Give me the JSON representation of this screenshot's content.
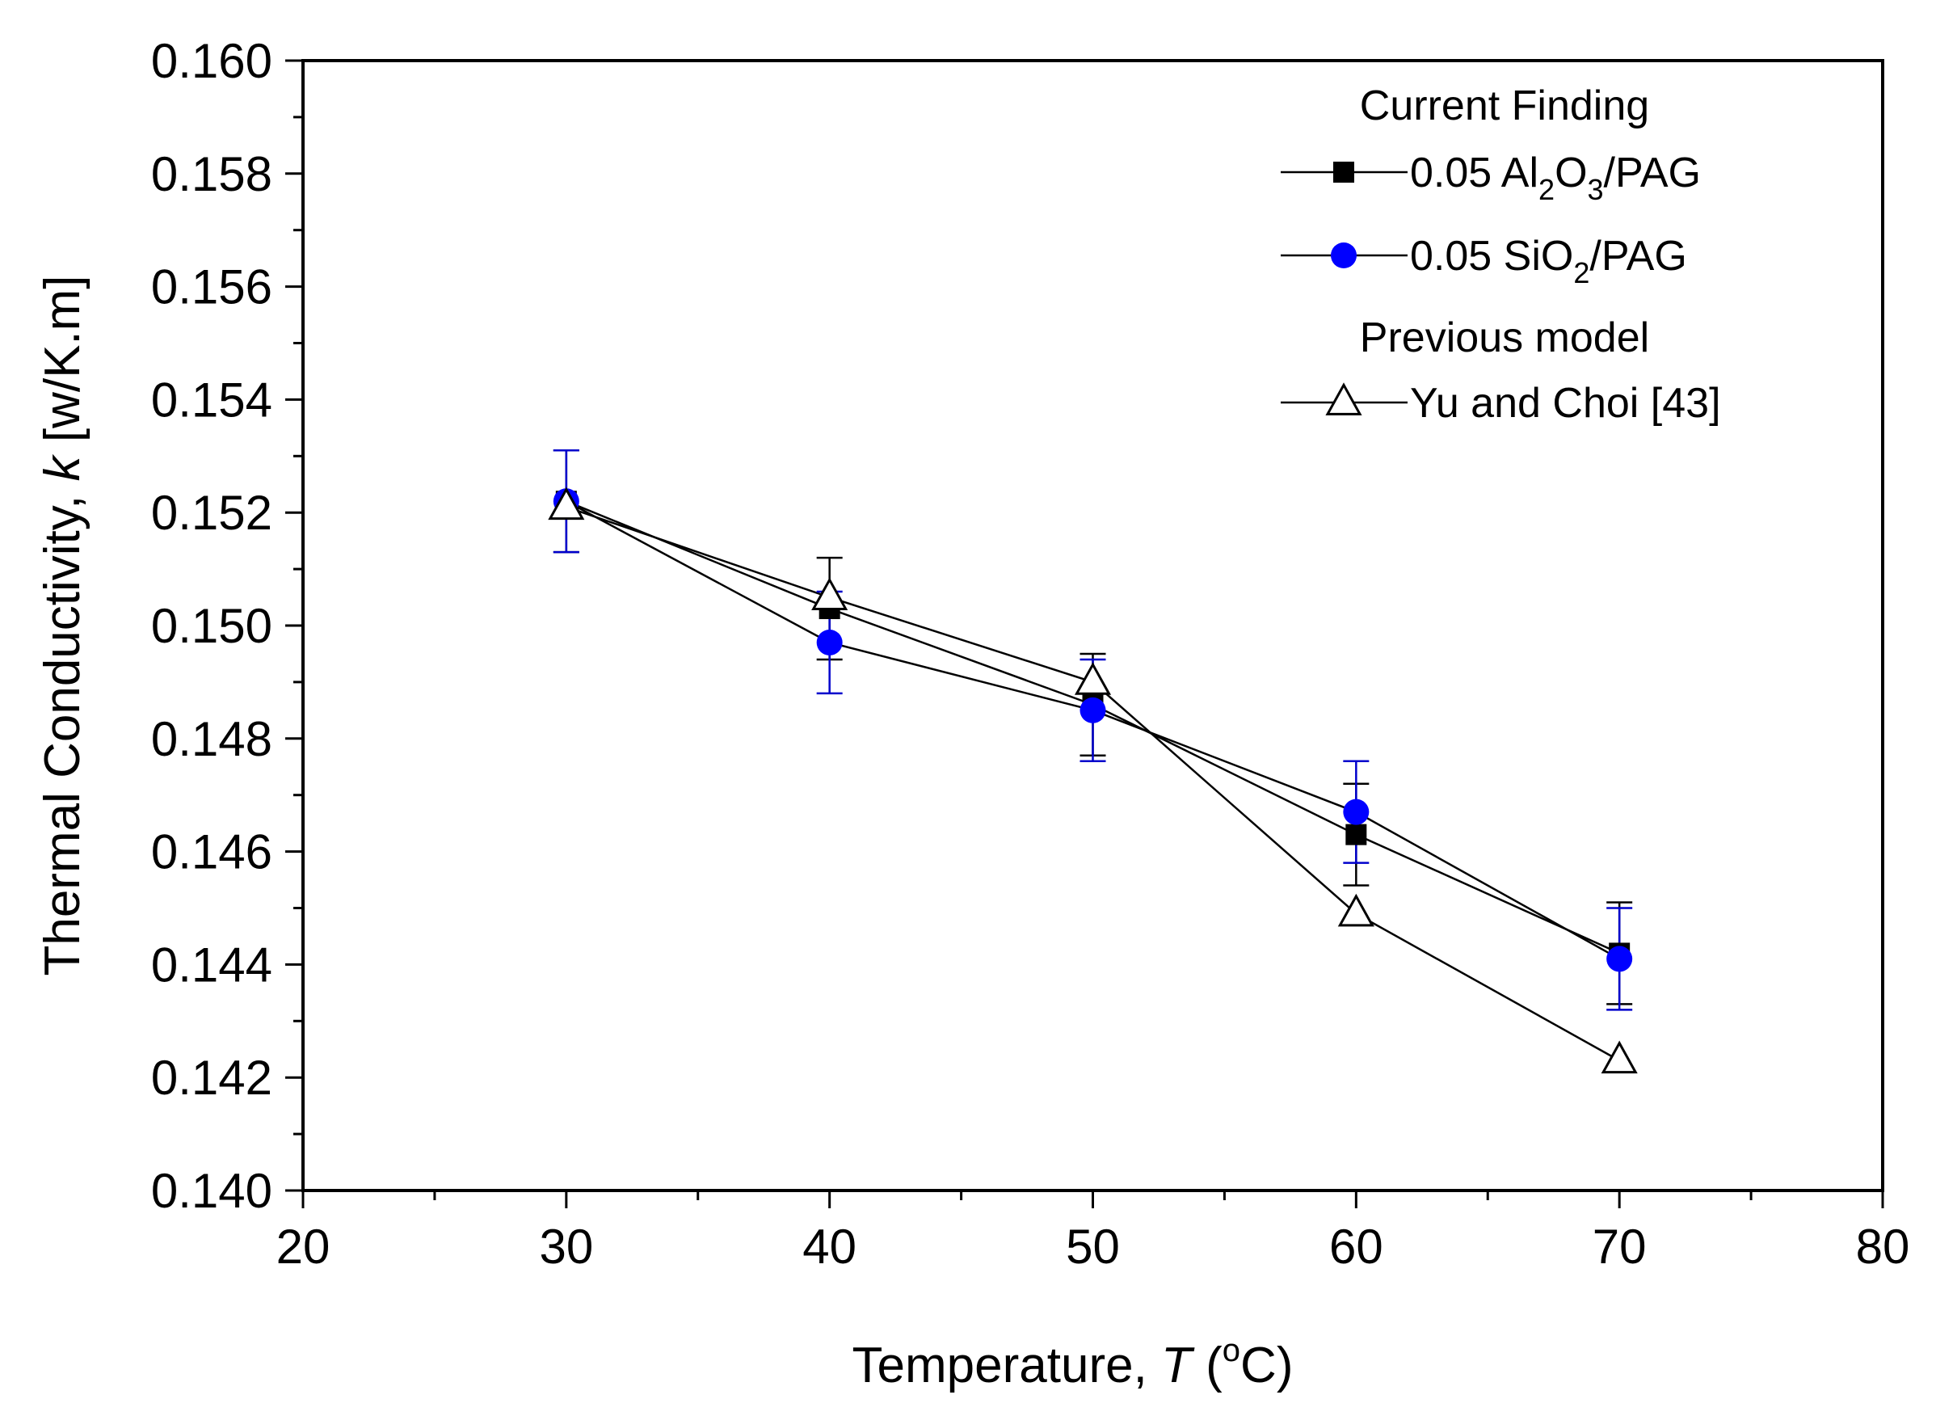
{
  "chart_data": {
    "type": "line",
    "title": "",
    "xlabel": {
      "text": "Temperature, ",
      "italic": "T",
      "unit_open": " (",
      "unit_sup": "o",
      "unit_close": "C)"
    },
    "ylabel": {
      "text": "Thermal Conductivity, ",
      "italic": "k",
      "unit": " [w/K.m]"
    },
    "xlim": [
      20,
      80
    ],
    "ylim": [
      0.14,
      0.16
    ],
    "xticks": [
      20,
      30,
      40,
      50,
      60,
      70,
      80
    ],
    "xtick_labels": [
      "20",
      "30",
      "40",
      "50",
      "60",
      "70",
      "80"
    ],
    "xminor_step": 5,
    "yticks": [
      0.14,
      0.142,
      0.144,
      0.146,
      0.148,
      0.15,
      0.152,
      0.154,
      0.156,
      0.158,
      0.16
    ],
    "ytick_labels": [
      "0.140",
      "0.142",
      "0.144",
      "0.146",
      "0.148",
      "0.150",
      "0.152",
      "0.154",
      "0.156",
      "0.158",
      "0.160"
    ],
    "yminor_step": 0.001,
    "grid": false,
    "legend": {
      "placement": "top-right",
      "groups": [
        {
          "heading": "Current Finding",
          "series": [
            0,
            1
          ]
        },
        {
          "heading": "Previous model",
          "series": [
            2
          ]
        }
      ]
    },
    "series": [
      {
        "name_parts": [
          [
            "0.05 Al",
            "n"
          ],
          [
            "2",
            "sub"
          ],
          [
            "O",
            "n"
          ],
          [
            "3",
            "sub"
          ],
          [
            "/PAG",
            "n"
          ]
        ],
        "marker": "square",
        "color": "#000000",
        "errorbar_color": "#000000",
        "x": [
          30,
          40,
          50,
          60,
          70
        ],
        "y": [
          0.1522,
          0.1503,
          0.1486,
          0.1463,
          0.1442
        ],
        "yerr": [
          0.0009,
          0.0009,
          0.0009,
          0.0009,
          0.0009
        ]
      },
      {
        "name_parts": [
          [
            "0.05 SiO",
            "n"
          ],
          [
            "2",
            "sub"
          ],
          [
            "/PAG",
            "n"
          ]
        ],
        "marker": "circle",
        "color": "#0000ff",
        "errorbar_color": "#0000cc",
        "x": [
          30,
          40,
          50,
          60,
          70
        ],
        "y": [
          0.1522,
          0.1497,
          0.1485,
          0.1467,
          0.1441
        ],
        "yerr": [
          0.0009,
          0.0009,
          0.0009,
          0.0009,
          0.0009
        ]
      },
      {
        "name_parts": [
          [
            "Yu and Choi [43]",
            "n"
          ]
        ],
        "marker": "triangle",
        "color": "#000000",
        "errorbar_color": "#000000",
        "x": [
          30,
          40,
          50,
          60,
          70
        ],
        "y": [
          0.1521,
          0.1505,
          0.149,
          0.1449,
          0.1423
        ],
        "yerr": null
      }
    ]
  }
}
